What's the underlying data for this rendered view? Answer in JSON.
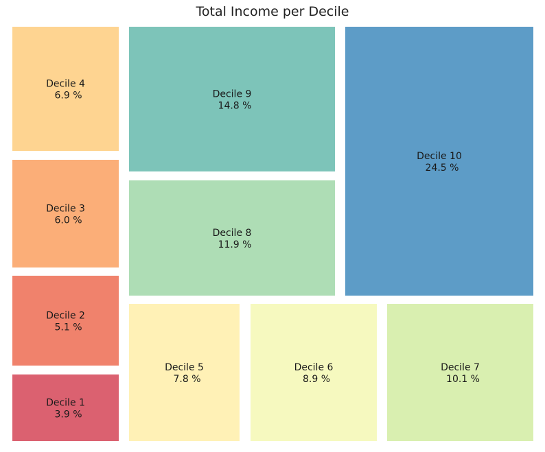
{
  "chart_data": {
    "type": "treemap",
    "title": "Total Income per Decile",
    "value_suffix": " %",
    "tiles": [
      {
        "name": "Decile 1",
        "value": "3.9",
        "color": "#db6170"
      },
      {
        "name": "Decile 2",
        "value": "5.1",
        "color": "#f0826c"
      },
      {
        "name": "Decile 3",
        "value": "6.0",
        "color": "#fbae78"
      },
      {
        "name": "Decile 4",
        "value": "6.9",
        "color": "#fed491"
      },
      {
        "name": "Decile 5",
        "value": "7.8",
        "color": "#fff1b6"
      },
      {
        "name": "Decile 6",
        "value": "8.9",
        "color": "#f6f9bf"
      },
      {
        "name": "Decile 7",
        "value": "10.1",
        "color": "#d9efb0"
      },
      {
        "name": "Decile 8",
        "value": "11.9",
        "color": "#aeddb5"
      },
      {
        "name": "Decile 9",
        "value": "14.8",
        "color": "#7dc4b9"
      },
      {
        "name": "Decile 10",
        "value": "24.5",
        "color": "#5d9cc7"
      }
    ]
  }
}
